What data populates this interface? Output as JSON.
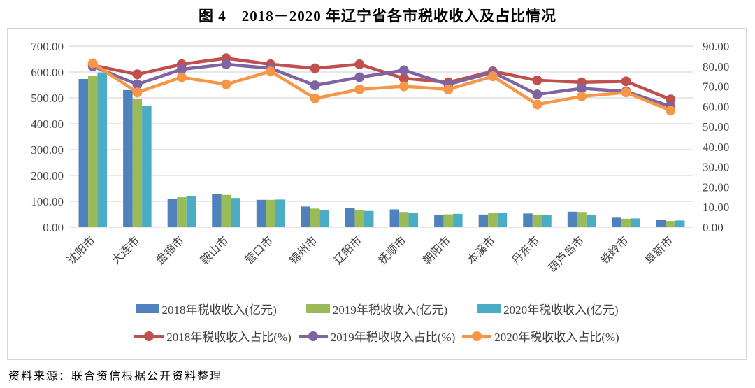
{
  "title": "图 4　2018－2020 年辽宁省各市税收收入及占比情况",
  "source": "资料来源：联合资信根据公开资料整理",
  "chart_data": {
    "type": "bar",
    "subtype": "grouped-bar-with-lines-combo",
    "categories": [
      "沈阳市",
      "大连市",
      "盘锦市",
      "鞍山市",
      "营口市",
      "锦州市",
      "辽阳市",
      "抚顺市",
      "朝阳市",
      "本溪市",
      "丹东市",
      "葫芦岛市",
      "铁岭市",
      "阜新市"
    ],
    "bar_series": [
      {
        "name": "2018年税收收入(亿元)",
        "color": "#4F81BD",
        "axis": "left",
        "values": [
          573,
          530,
          110,
          127,
          106,
          80,
          74,
          69,
          48,
          49,
          53,
          60,
          37,
          28
        ]
      },
      {
        "name": "2019年税收收入(亿元)",
        "color": "#9BBB59",
        "axis": "left",
        "values": [
          584,
          495,
          116,
          125,
          106,
          72,
          68,
          59,
          50,
          54,
          49,
          59,
          33,
          24
        ]
      },
      {
        "name": "2020年税收收入(亿元)",
        "color": "#4BACC6",
        "axis": "left",
        "values": [
          598,
          468,
          119,
          113,
          107,
          67,
          63,
          54,
          52,
          54,
          47,
          46,
          34,
          26
        ]
      }
    ],
    "line_series": [
      {
        "name": "2018年税收收入占比(%)",
        "color": "#C0504D",
        "axis": "right",
        "values": [
          80.5,
          76.0,
          81.0,
          84.0,
          81.0,
          79.0,
          81.0,
          74.0,
          72.0,
          77.5,
          73.0,
          72.0,
          72.5,
          63.5
        ]
      },
      {
        "name": "2019年税收收入占比(%)",
        "color": "#8064A2",
        "axis": "right",
        "values": [
          80.0,
          71.0,
          78.5,
          81.0,
          79.0,
          70.5,
          74.5,
          78.0,
          71.0,
          77.0,
          66.0,
          69.0,
          67.5,
          60.0
        ]
      },
      {
        "name": "2020年税收收入占比(%)",
        "color": "#F79646",
        "axis": "right",
        "values": [
          81.5,
          67.0,
          74.5,
          71.0,
          77.5,
          64.0,
          68.5,
          70.0,
          68.5,
          75.0,
          61.0,
          65.0,
          67.0,
          58.0
        ]
      }
    ],
    "left_axis": {
      "min": 0,
      "max": 700,
      "step": 100,
      "tick_format": "two-decimals"
    },
    "right_axis": {
      "min": 0,
      "max": 90,
      "step": 10,
      "tick_format": "two-decimals"
    },
    "grid": true,
    "legend_position": "bottom",
    "style": {
      "grid_color": "#D9D9D9",
      "axis_text_color": "#404040",
      "category_text_color": "#404040",
      "category_label_rotation_deg": -45
    }
  }
}
